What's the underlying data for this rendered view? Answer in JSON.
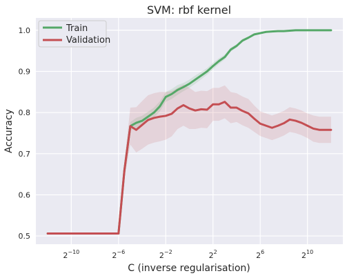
{
  "chart_data": {
    "type": "line",
    "title": "SVM: rbf kernel",
    "xlabel": "C (inverse regularisation)",
    "ylabel": "Accuracy",
    "x_scale": "log2",
    "x_exponent_range": [
      -13,
      13
    ],
    "ylim": [
      0.48,
      1.03
    ],
    "grid": true,
    "legend_position": "top-left",
    "x_ticks": [
      {
        "base": "2",
        "exp": "−10",
        "value_exp": -10
      },
      {
        "base": "2",
        "exp": "−6",
        "value_exp": -6
      },
      {
        "base": "2",
        "exp": "−2",
        "value_exp": -2
      },
      {
        "base": "2",
        "exp": "2",
        "value_exp": 2
      },
      {
        "base": "2",
        "exp": "6",
        "value_exp": 6
      },
      {
        "base": "2",
        "exp": "10",
        "value_exp": 10
      }
    ],
    "y_ticks": [
      {
        "label": "0.5",
        "value": 0.5
      },
      {
        "label": "0.6",
        "value": 0.6
      },
      {
        "label": "0.7",
        "value": 0.7
      },
      {
        "label": "0.8",
        "value": 0.8
      },
      {
        "label": "0.9",
        "value": 0.9
      },
      {
        "label": "1.0",
        "value": 1.0
      }
    ],
    "x_exponents": [
      -12,
      -11.5,
      -11,
      -10.5,
      -10,
      -9.5,
      -9,
      -8.5,
      -8,
      -7.5,
      -7,
      -6.5,
      -6,
      -5.5,
      -5,
      -4.5,
      -4,
      -3.5,
      -3,
      -2.5,
      -2,
      -1.5,
      -1,
      -0.5,
      0,
      0.5,
      1,
      1.5,
      2,
      2.5,
      3,
      3.5,
      4,
      4.5,
      5,
      5.5,
      6,
      6.5,
      7,
      7.5,
      8,
      8.5,
      9,
      9.5,
      10,
      10.5,
      11,
      11.5,
      12
    ],
    "series": [
      {
        "name": "Train",
        "color": "#55a868",
        "values": [
          0.506,
          0.506,
          0.506,
          0.506,
          0.506,
          0.506,
          0.506,
          0.506,
          0.506,
          0.506,
          0.506,
          0.506,
          0.506,
          0.66,
          0.767,
          0.775,
          0.78,
          0.79,
          0.8,
          0.815,
          0.838,
          0.845,
          0.855,
          0.862,
          0.87,
          0.88,
          0.89,
          0.9,
          0.913,
          0.925,
          0.935,
          0.953,
          0.962,
          0.975,
          0.982,
          0.99,
          0.993,
          0.996,
          0.997,
          0.998,
          0.998,
          0.999,
          1.0,
          1.0,
          1.0,
          1.0,
          1.0,
          1.0,
          1.0
        ],
        "band_half_width": [
          0.001,
          0.001,
          0.001,
          0.001,
          0.001,
          0.001,
          0.001,
          0.001,
          0.001,
          0.001,
          0.001,
          0.001,
          0.001,
          0.006,
          0.01,
          0.012,
          0.012,
          0.012,
          0.012,
          0.012,
          0.012,
          0.012,
          0.012,
          0.01,
          0.01,
          0.01,
          0.009,
          0.008,
          0.008,
          0.007,
          0.006,
          0.005,
          0.004,
          0.004,
          0.003,
          0.003,
          0.002,
          0.002,
          0.002,
          0.002,
          0.001,
          0.001,
          0.001,
          0.001,
          0.001,
          0.001,
          0.001,
          0.001,
          0.001
        ]
      },
      {
        "name": "Validation",
        "color": "#c44e52",
        "values": [
          0.506,
          0.506,
          0.506,
          0.506,
          0.506,
          0.506,
          0.506,
          0.506,
          0.506,
          0.506,
          0.506,
          0.506,
          0.506,
          0.66,
          0.767,
          0.758,
          0.77,
          0.782,
          0.787,
          0.79,
          0.792,
          0.797,
          0.81,
          0.818,
          0.81,
          0.805,
          0.808,
          0.807,
          0.82,
          0.82,
          0.826,
          0.812,
          0.812,
          0.804,
          0.798,
          0.785,
          0.773,
          0.768,
          0.763,
          0.768,
          0.774,
          0.783,
          0.78,
          0.775,
          0.768,
          0.761,
          0.758,
          0.758,
          0.758
        ],
        "band_half_width": [
          0.002,
          0.002,
          0.002,
          0.002,
          0.002,
          0.002,
          0.002,
          0.002,
          0.002,
          0.002,
          0.002,
          0.002,
          0.002,
          0.02,
          0.045,
          0.055,
          0.058,
          0.06,
          0.06,
          0.06,
          0.058,
          0.055,
          0.05,
          0.05,
          0.05,
          0.045,
          0.045,
          0.045,
          0.04,
          0.04,
          0.04,
          0.038,
          0.035,
          0.035,
          0.035,
          0.032,
          0.03,
          0.03,
          0.03,
          0.03,
          0.03,
          0.03,
          0.03,
          0.03,
          0.03,
          0.032,
          0.032,
          0.032,
          0.032
        ]
      }
    ]
  }
}
